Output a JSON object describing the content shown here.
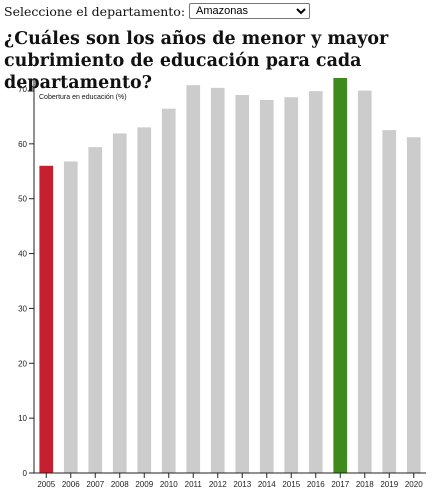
{
  "selector": {
    "label": "Seleccione el departamento:",
    "selected": "Amazonas"
  },
  "title": "¿Cuáles son los años de menor y mayor cubrimiento de educación para cada departamento?",
  "chart_data": {
    "type": "bar",
    "ylabel": "Cobertura en educación (%)",
    "xlabel": "",
    "ylim": [
      0,
      72
    ],
    "yticks": [
      0,
      10,
      20,
      30,
      40,
      50,
      60,
      70
    ],
    "categories": [
      "2005",
      "2006",
      "2007",
      "2008",
      "2009",
      "2010",
      "2011",
      "2012",
      "2013",
      "2014",
      "2015",
      "2016",
      "2017",
      "2018",
      "2019",
      "2020"
    ],
    "values": [
      56,
      56.8,
      59.4,
      61.9,
      63,
      66.4,
      70.7,
      70.2,
      68.9,
      68,
      68.5,
      69.6,
      72,
      69.7,
      62.5,
      61.2
    ],
    "colors": {
      "default": "#cccccc",
      "min": "#c61f2f",
      "max": "#3f8a1c"
    },
    "grid": false
  }
}
